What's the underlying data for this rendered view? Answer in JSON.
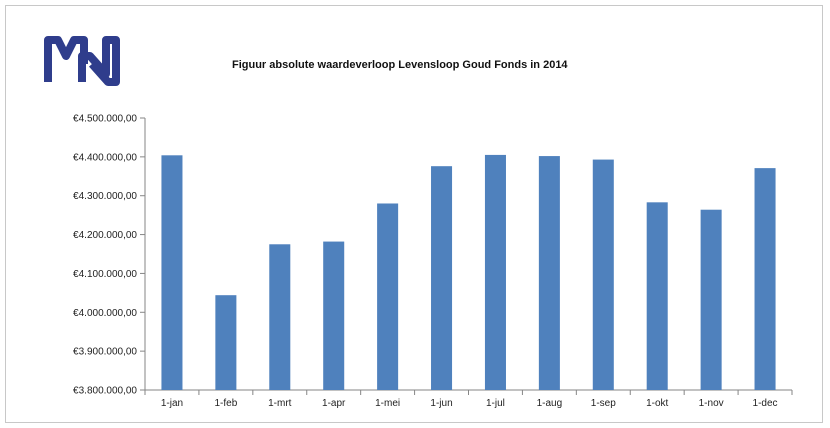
{
  "logo": {
    "name": "MN",
    "color": "#2f3d8c"
  },
  "chart_data": {
    "type": "bar",
    "title": "Figuur absolute waardeverloop Levensloop Goud Fonds in 2014",
    "xlabel": "",
    "ylabel": "",
    "categories": [
      "1-jan",
      "1-feb",
      "1-mrt",
      "1-apr",
      "1-mei",
      "1-jun",
      "1-jul",
      "1-aug",
      "1-sep",
      "1-okt",
      "1-nov",
      "1-dec"
    ],
    "values": [
      4404000,
      4044000,
      4175000,
      4182000,
      4280000,
      4376000,
      4405000,
      4402000,
      4393000,
      4283000,
      4264000,
      4371000
    ],
    "ylim": [
      3800000,
      4500000
    ],
    "yticks": [
      3800000,
      3900000,
      4000000,
      4100000,
      4200000,
      4300000,
      4400000,
      4500000
    ],
    "ytick_labels": [
      "€3.800.000,00",
      "€3.900.000,00",
      "€4.000.000,00",
      "€4.100.000,00",
      "€4.200.000,00",
      "€4.300.000,00",
      "€4.400.000,00",
      "€4.500.000,00"
    ],
    "grid": false,
    "legend": "none",
    "bar_color": "#4f81bd"
  }
}
